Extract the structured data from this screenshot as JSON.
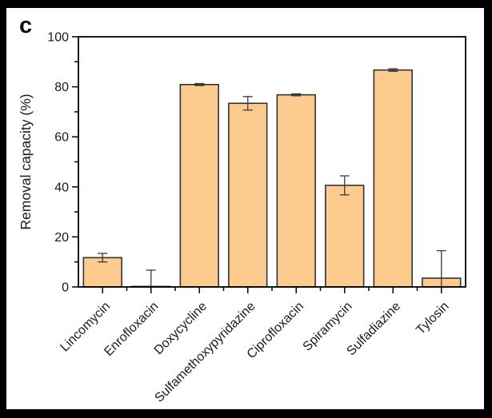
{
  "panel_label": "c",
  "colors": {
    "bar_fill": "#FCCB8D",
    "bar_edge": "#333333",
    "error_bar": "#3a3a3a",
    "axis": "#000000",
    "frame_background": "#000000",
    "plot_background": "#ffffff",
    "text": "#1a1a1a"
  },
  "chart_data": {
    "type": "bar",
    "title": "",
    "xlabel": "",
    "ylabel": "Removal capacity (%)",
    "ylim": [
      0,
      100
    ],
    "yticks": [
      0,
      20,
      40,
      60,
      80,
      100
    ],
    "minor_yticks": [
      10,
      30,
      50,
      70,
      90
    ],
    "grid": false,
    "legend": false,
    "x_tick_label_rotation": 45,
    "categories": [
      "Lincomycin",
      "Enrofloxacin",
      "Doxycycline",
      "Sulfamethoxypyridazine",
      "Ciprofloxacin",
      "Spiramycin",
      "Sulfadiazine",
      "Tylosin"
    ],
    "series": [
      {
        "name": "Removal capacity",
        "values": [
          11.7,
          0.2,
          80.9,
          73.4,
          76.8,
          40.6,
          86.7,
          3.5
        ],
        "errors": [
          1.7,
          6.5,
          0.4,
          2.7,
          0.4,
          3.8,
          0.5,
          11.0
        ]
      }
    ]
  }
}
